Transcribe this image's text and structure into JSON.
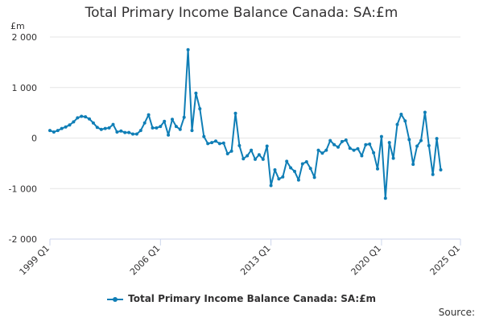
{
  "chart_data": {
    "type": "line",
    "title": "Total Primary Income Balance Canada: SA:£m",
    "ylabel": "£m",
    "xlabel": "",
    "ylim": [
      -2000,
      2000
    ],
    "y_ticks": [
      -2000,
      -1000,
      0,
      1000,
      2000
    ],
    "y_tick_labels": [
      "-2 000",
      "-1 000",
      "0",
      "1 000",
      "2 000"
    ],
    "x_start": "1999 Q1",
    "x_ticks": [
      "1999 Q1",
      "2006 Q1",
      "2013 Q1",
      "2020 Q1",
      "2025 Q1"
    ],
    "x_tick_index": [
      0,
      28,
      56,
      84,
      104
    ],
    "grid": "horizontal",
    "legend_position": "bottom-center",
    "series": [
      {
        "name": "Total Primary Income Balance Canada: SA:£m",
        "color": "#0f7eb6",
        "values": [
          150,
          120,
          150,
          190,
          220,
          260,
          320,
          400,
          430,
          420,
          380,
          300,
          210,
          170,
          190,
          200,
          270,
          120,
          140,
          110,
          110,
          80,
          80,
          150,
          300,
          460,
          200,
          200,
          230,
          330,
          60,
          370,
          230,
          170,
          410,
          1750,
          150,
          890,
          580,
          30,
          -110,
          -90,
          -60,
          -110,
          -100,
          -310,
          -260,
          490,
          -150,
          -410,
          -350,
          -240,
          -420,
          -330,
          -420,
          -160,
          -940,
          -630,
          -810,
          -770,
          -460,
          -590,
          -660,
          -830,
          -510,
          -470,
          -600,
          -780,
          -240,
          -300,
          -240,
          -50,
          -130,
          -180,
          -70,
          -40,
          -200,
          -240,
          -210,
          -350,
          -130,
          -120,
          -290,
          -610,
          30,
          -1190,
          -90,
          -400,
          270,
          470,
          340,
          -30,
          -520,
          -160,
          -50,
          510,
          -150,
          -720,
          -10,
          -630
        ]
      }
    ],
    "source_label": "Source:"
  }
}
